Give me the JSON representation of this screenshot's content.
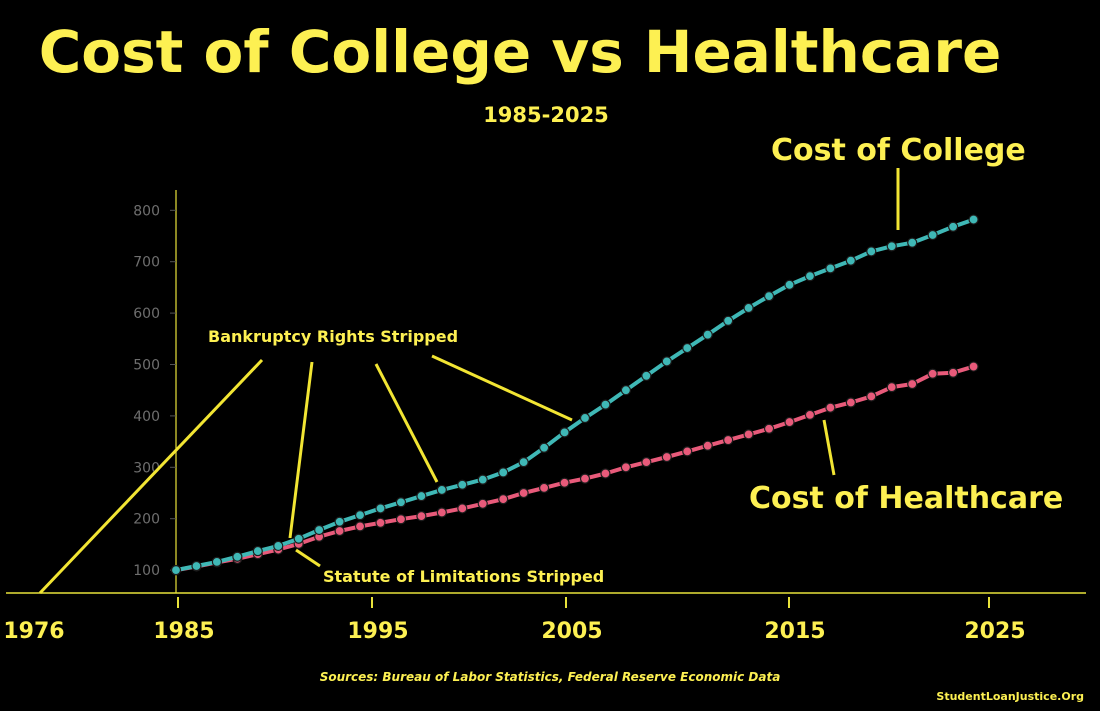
{
  "colors": {
    "background": "#000000",
    "text": "#fdf052",
    "axis": "#e8e23a",
    "college": "#3fb8b6",
    "healthcare": "#e85a7a",
    "gray_tick": "#6e6e6e"
  },
  "chart_data": {
    "type": "line",
    "title": "Cost of College vs Healthcare",
    "subtitle": "1985-2025",
    "ylim": [
      0,
      850
    ],
    "yticks": [
      100,
      200,
      300,
      400,
      500,
      600,
      700,
      800
    ],
    "xticks": [
      "1976",
      "1985",
      "1995",
      "2005",
      "2015",
      "2025"
    ],
    "xlim": [
      1985,
      2029.5
    ],
    "grid": false,
    "series": [
      {
        "name": "Cost of College",
        "x": [
          1985,
          1986,
          1987,
          1988,
          1989,
          1990,
          1991,
          1992,
          1993,
          1994,
          1995,
          1996,
          1997,
          1998,
          1999,
          2000,
          2001,
          2002,
          2003,
          2004,
          2005,
          2006,
          2007,
          2008,
          2009,
          2010,
          2011,
          2012,
          2013,
          2014,
          2015,
          2016,
          2017,
          2018,
          2019,
          2020,
          2021,
          2022,
          2023,
          2024
        ],
        "y": [
          100,
          108,
          116,
          126,
          137,
          147,
          161,
          178,
          194,
          207,
          220,
          232,
          244,
          256,
          266,
          276,
          290,
          310,
          338,
          368,
          396,
          422,
          450,
          478,
          506,
          532,
          558,
          585,
          610,
          633,
          655,
          672,
          687,
          702,
          720,
          730,
          737,
          752,
          768,
          782
        ]
      },
      {
        "name": "Cost of Healthcare",
        "x": [
          1985,
          1986,
          1987,
          1988,
          1989,
          1990,
          1991,
          1992,
          1993,
          1994,
          1995,
          1996,
          1997,
          1998,
          1999,
          2000,
          2001,
          2002,
          2003,
          2004,
          2005,
          2006,
          2007,
          2008,
          2009,
          2010,
          2011,
          2012,
          2013,
          2014,
          2015,
          2016,
          2017,
          2018,
          2019,
          2020,
          2021,
          2022,
          2023,
          2024
        ],
        "y": [
          100,
          107,
          115,
          122,
          131,
          140,
          151,
          165,
          176,
          185,
          192,
          199,
          205,
          212,
          220,
          229,
          238,
          250,
          260,
          270,
          278,
          288,
          300,
          310,
          320,
          331,
          342,
          353,
          364,
          375,
          388,
          402,
          416,
          426,
          438,
          456,
          462,
          482,
          484,
          496
        ]
      }
    ],
    "annotations": {
      "bankruptcy": "Bankruptcy Rights Stripped",
      "statute": "Statute of Limitations Stripped",
      "college_label": "Cost of College",
      "healthcare_label": "Cost of Healthcare"
    },
    "source": "Sources: Bureau of Labor Statistics, Federal Reserve Economic Data",
    "credit": "StudentLoanJustice.Org"
  }
}
